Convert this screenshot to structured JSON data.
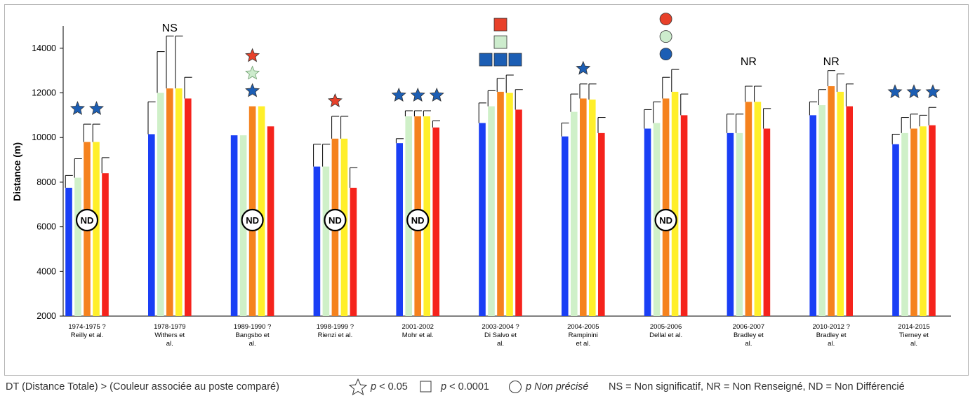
{
  "chart_data": {
    "type": "bar",
    "ylabel": "Distance  (m)",
    "ylim": [
      2000,
      15000
    ],
    "yticks": [
      2000,
      4000,
      6000,
      8000,
      10000,
      12000,
      14000
    ],
    "ytick_labels": [
      "2000",
      "4000",
      "6000",
      "8000",
      "10000",
      "12000",
      "14000"
    ],
    "groups": [
      {
        "label1": "1974-1975 ?",
        "label2": "Reilly et al.",
        "label3": "",
        "values": [
          7750,
          8200,
          9800,
          9800,
          8400
        ],
        "errors": [
          550,
          850,
          800,
          800,
          700
        ],
        "nd": true,
        "marks": [
          {
            "type": "star",
            "colors": [
              "#1c5eb4",
              "#1c5eb4"
            ]
          }
        ]
      },
      {
        "label1": "1978-1979",
        "label2": "Withers et",
        "label3": "al.",
        "values": [
          10150,
          12000,
          12200,
          12200,
          11750
        ],
        "errors": [
          1450,
          1850,
          2350,
          2350,
          950
        ],
        "nd": false,
        "text_mark": "NS",
        "marks": []
      },
      {
        "label1": "1989-1990 ?",
        "label2": "Bangsbo et",
        "label3": "al.",
        "values": [
          10100,
          10100,
          11400,
          11400,
          10500
        ],
        "errors": [
          0,
          0,
          0,
          0,
          0
        ],
        "nd": true,
        "marks": [
          {
            "type": "star",
            "colors": [
              "#e8412a"
            ]
          },
          {
            "type": "star",
            "colors": [
              "#cdeccd"
            ]
          },
          {
            "type": "star",
            "colors": [
              "#1c5eb4"
            ]
          }
        ]
      },
      {
        "label1": "1998-1999 ?",
        "label2": "Rienzi et al.",
        "label3": "",
        "values": [
          8700,
          8700,
          9950,
          9950,
          7750
        ],
        "errors": [
          1000,
          1000,
          1000,
          1000,
          900
        ],
        "nd": true,
        "marks": [
          {
            "type": "star",
            "colors": [
              "#e8412a"
            ]
          }
        ]
      },
      {
        "label1": "2001-2002",
        "label2": "Mohr et al.",
        "label3": "",
        "values": [
          9750,
          10950,
          10950,
          10950,
          10450
        ],
        "errors": [
          200,
          250,
          250,
          250,
          300
        ],
        "nd": true,
        "marks": [
          {
            "type": "star",
            "colors": [
              "#1c5eb4",
              "#1c5eb4",
              "#1c5eb4"
            ]
          }
        ]
      },
      {
        "label1": "2003-2004 ?",
        "label2": "Di Salvo et",
        "label3": "al.",
        "values": [
          10650,
          11400,
          12050,
          12000,
          11250
        ],
        "errors": [
          900,
          700,
          600,
          800,
          900
        ],
        "nd": false,
        "marks": [
          {
            "type": "square",
            "colors": [
              "#e8412a"
            ]
          },
          {
            "type": "square",
            "colors": [
              "#cdeccd"
            ]
          },
          {
            "type": "square",
            "colors": [
              "#1c5eb4",
              "#1c5eb4",
              "#1c5eb4"
            ]
          }
        ]
      },
      {
        "label1": "2004-2005",
        "label2": "Rampinini",
        "label3": "et al.",
        "values": [
          10050,
          11150,
          11750,
          11700,
          10200
        ],
        "errors": [
          600,
          800,
          650,
          700,
          700
        ],
        "nd": false,
        "marks": [
          {
            "type": "star",
            "colors": [
              "#1c5eb4"
            ]
          }
        ]
      },
      {
        "label1": "2005-2006",
        "label2": "Dellal et al.",
        "label3": "",
        "values": [
          10400,
          10650,
          11750,
          12050,
          11000
        ],
        "errors": [
          850,
          950,
          950,
          1000,
          950
        ],
        "nd": true,
        "marks": [
          {
            "type": "circle",
            "colors": [
              "#e8412a"
            ]
          },
          {
            "type": "circle",
            "colors": [
              "#cdeccd"
            ]
          },
          {
            "type": "circle",
            "colors": [
              "#1c5eb4"
            ]
          }
        ]
      },
      {
        "label1": "2006-2007",
        "label2": "Bradley et",
        "label3": "al.",
        "values": [
          10200,
          10200,
          11600,
          11600,
          10400
        ],
        "errors": [
          850,
          850,
          700,
          700,
          900
        ],
        "nd": false,
        "text_mark": "NR",
        "marks": []
      },
      {
        "label1": "2010-2012 ?",
        "label2": "Bradley et",
        "label3": "al.",
        "values": [
          11000,
          11450,
          12300,
          12050,
          11400
        ],
        "errors": [
          600,
          700,
          700,
          800,
          1000
        ],
        "nd": false,
        "text_mark": "NR",
        "marks": []
      },
      {
        "label1": "2014-2015",
        "label2": "Tierney et",
        "label3": "al.",
        "values": [
          9700,
          10200,
          10400,
          10500,
          10550
        ],
        "errors": [
          450,
          700,
          650,
          500,
          800
        ],
        "nd": false,
        "marks": [
          {
            "type": "star",
            "colors": [
              "#1c5eb4",
              "#1c5eb4",
              "#1c5eb4"
            ]
          }
        ]
      }
    ],
    "series_colors": [
      "#1a3ff5",
      "#cff0c8",
      "#f5821e",
      "#ffef2a",
      "#f5231c"
    ],
    "nd_label": "ND"
  },
  "footer": {
    "part1": "DT (Distance Totale) >  (Couleur associée au poste comparé)",
    "star_text": "p < 0.05",
    "square_text": "p < 0.0001",
    "circle_text": "p Non précisé",
    "abbr_text": "NS  = Non significatif,  NR = Non Renseigné, ND  = Non Différencié"
  }
}
